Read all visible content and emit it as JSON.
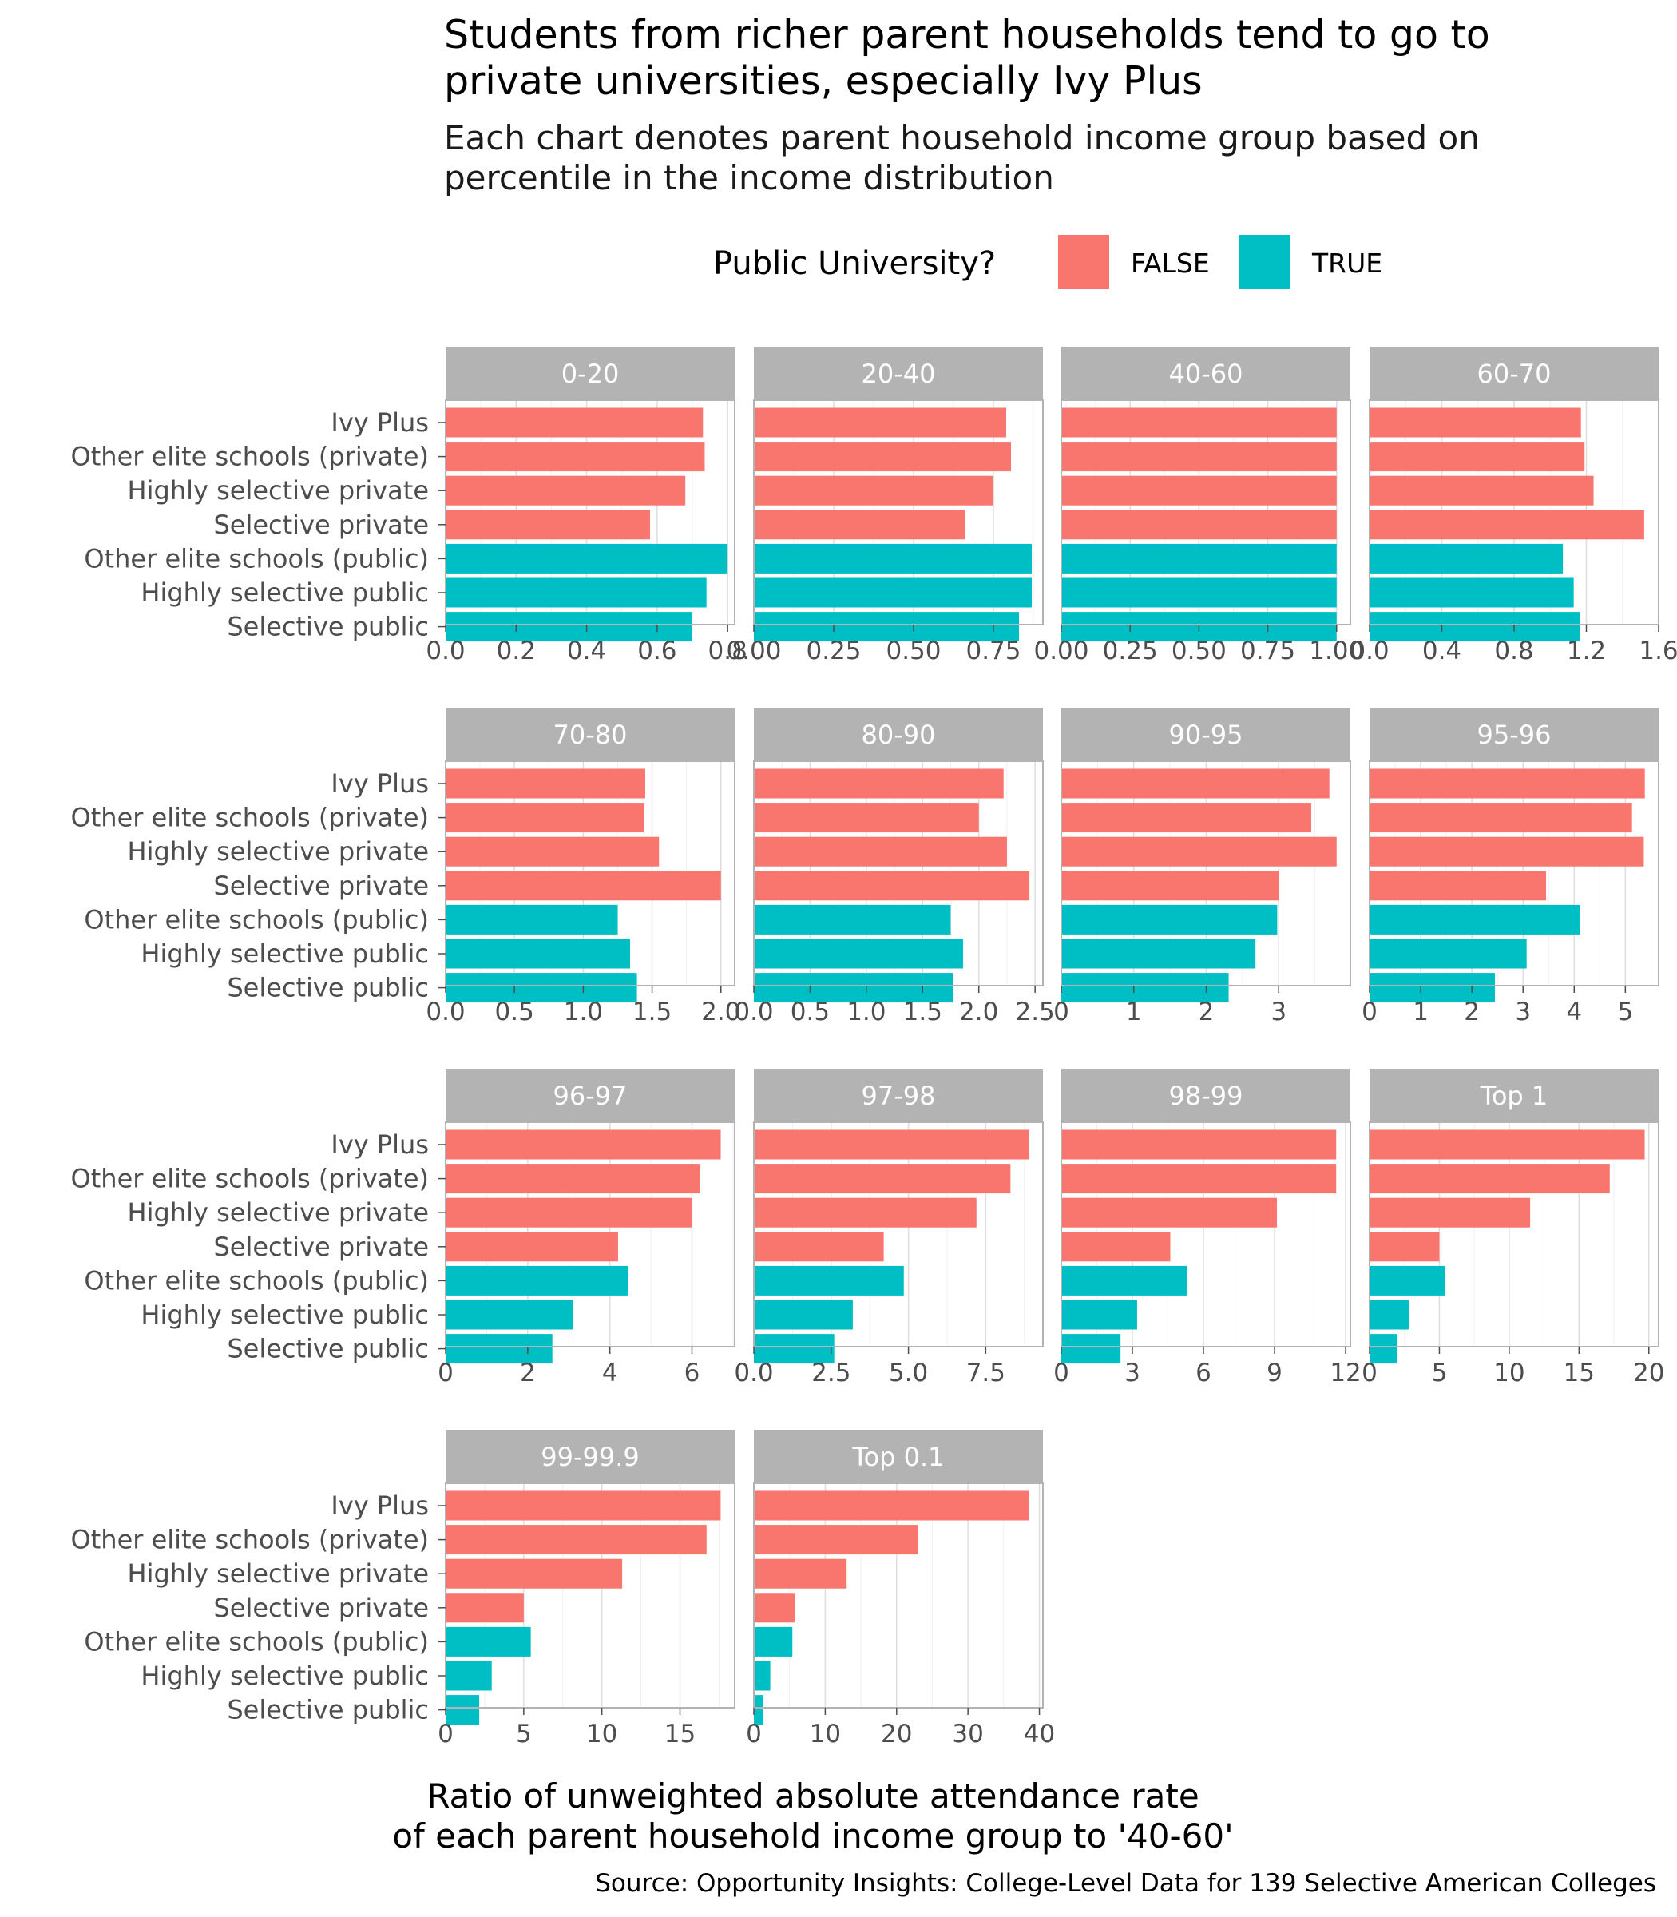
{
  "chart_data": {
    "type": "bar",
    "orientation": "horizontal",
    "title": "Students from richer parent households tend to go to private universities, especially Ivy Plus",
    "title_lines": [
      "Students from richer parent households tend to go to",
      "private universities, especially Ivy Plus"
    ],
    "subtitle": "Each chart denotes parent household income group based on percentile in the income distribution",
    "subtitle_lines": [
      "Each chart denotes parent household income group based on",
      "percentile in the income distribution"
    ],
    "xlabel": "Ratio of unweighted absolute attendance rate of each parent household income group to '40-60'",
    "xlabel_lines": [
      "Ratio of unweighted absolute attendance rate",
      "of each parent household income group to '40-60'"
    ],
    "caption": "Source: Opportunity Insights: College-Level Data for 139 Selective American Colleges",
    "legend": {
      "title": "Public University?",
      "position": "top",
      "entries": [
        {
          "label": "FALSE",
          "color": "#F8766D"
        },
        {
          "label": "TRUE",
          "color": "#00BFC4"
        }
      ]
    },
    "grid": true,
    "categories": [
      "Ivy Plus",
      "Other elite schools (private)",
      "Highly selective private",
      "Selective private",
      "Other elite schools (public)",
      "Highly selective public",
      "Selective public"
    ],
    "category_public": [
      false,
      false,
      false,
      false,
      true,
      true,
      true
    ],
    "panels": [
      {
        "name": "0-20",
        "values": [
          0.73,
          0.735,
          0.68,
          0.58,
          0.8,
          0.74,
          0.7
        ],
        "xlim": [
          0,
          0.82
        ],
        "ticks": [
          0,
          0.2,
          0.4,
          0.6,
          0.8
        ],
        "tick_labels": [
          "0.0",
          "0.2",
          "0.4",
          "0.6",
          "0.8"
        ]
      },
      {
        "name": "20-40",
        "values": [
          0.79,
          0.805,
          0.75,
          0.66,
          0.87,
          0.87,
          0.83
        ],
        "xlim": [
          0,
          0.905
        ],
        "ticks": [
          0,
          0.25,
          0.5,
          0.75
        ],
        "tick_labels": [
          "0.00",
          "0.25",
          "0.50",
          "0.75"
        ]
      },
      {
        "name": "40-60",
        "values": [
          1,
          1,
          1,
          1,
          1,
          1,
          1
        ],
        "xlim": [
          0,
          1.05
        ],
        "ticks": [
          0,
          0.25,
          0.5,
          0.75,
          1
        ],
        "tick_labels": [
          "0.00",
          "0.25",
          "0.50",
          "0.75",
          "1.00"
        ]
      },
      {
        "name": "60-70",
        "values": [
          1.17,
          1.19,
          1.24,
          1.52,
          1.07,
          1.13,
          1.165
        ],
        "xlim": [
          0,
          1.6
        ],
        "ticks": [
          0,
          0.4,
          0.8,
          1.2,
          1.6
        ],
        "tick_labels": [
          "0.0",
          "0.4",
          "0.8",
          "1.2",
          "1.6"
        ]
      },
      {
        "name": "70-80",
        "values": [
          1.45,
          1.44,
          1.55,
          2.0,
          1.25,
          1.34,
          1.39
        ],
        "xlim": [
          0,
          2.1
        ],
        "ticks": [
          0,
          0.5,
          1,
          1.5,
          2
        ],
        "tick_labels": [
          "0.0",
          "0.5",
          "1.0",
          "1.5",
          "2.0"
        ]
      },
      {
        "name": "80-90",
        "values": [
          2.22,
          2.0,
          2.25,
          2.45,
          1.75,
          1.86,
          1.77
        ],
        "xlim": [
          0,
          2.57
        ],
        "ticks": [
          0,
          0.5,
          1,
          1.5,
          2,
          2.5
        ],
        "tick_labels": [
          "0.0",
          "0.5",
          "1.0",
          "1.5",
          "2.0",
          "2.5"
        ]
      },
      {
        "name": "90-95",
        "values": [
          3.7,
          3.45,
          3.8,
          3.0,
          2.98,
          2.68,
          2.31
        ],
        "xlim": [
          0,
          3.99
        ],
        "ticks": [
          0,
          1,
          2,
          3
        ],
        "tick_labels": [
          "0",
          "1",
          "2",
          "3"
        ]
      },
      {
        "name": "95-96",
        "values": [
          5.38,
          5.13,
          5.36,
          3.45,
          4.12,
          3.07,
          2.45
        ],
        "xlim": [
          0,
          5.65
        ],
        "ticks": [
          0,
          1,
          2,
          3,
          4,
          5
        ],
        "tick_labels": [
          "0",
          "1",
          "2",
          "3",
          "4",
          "5"
        ]
      },
      {
        "name": "96-97",
        "values": [
          6.7,
          6.2,
          6.0,
          4.2,
          4.45,
          3.1,
          2.6
        ],
        "xlim": [
          0,
          7.04
        ],
        "ticks": [
          0,
          2,
          4,
          6
        ],
        "tick_labels": [
          "0",
          "2",
          "4",
          "6"
        ]
      },
      {
        "name": "97-98",
        "values": [
          8.9,
          8.3,
          7.2,
          4.2,
          4.85,
          3.2,
          2.6
        ],
        "xlim": [
          0,
          9.35
        ],
        "ticks": [
          0,
          2.5,
          5,
          7.5
        ],
        "tick_labels": [
          "0.0",
          "2.5",
          "5.0",
          "7.5"
        ]
      },
      {
        "name": "98-99",
        "values": [
          11.6,
          11.6,
          9.1,
          4.6,
          5.3,
          3.2,
          2.5
        ],
        "xlim": [
          0,
          12.2
        ],
        "ticks": [
          0,
          3,
          6,
          9,
          12
        ],
        "tick_labels": [
          "0",
          "3",
          "6",
          "9",
          "12"
        ]
      },
      {
        "name": "Top 1",
        "values": [
          19.7,
          17.2,
          11.5,
          5.0,
          5.4,
          2.8,
          2.0
        ],
        "xlim": [
          0,
          20.7
        ],
        "ticks": [
          0,
          5,
          10,
          15,
          20
        ],
        "tick_labels": [
          "0",
          "5",
          "10",
          "15",
          "20"
        ]
      },
      {
        "name": "99-99.9",
        "values": [
          17.6,
          16.7,
          11.3,
          5.0,
          5.45,
          2.95,
          2.15
        ],
        "xlim": [
          0,
          18.5
        ],
        "ticks": [
          0,
          5,
          10,
          15
        ],
        "tick_labels": [
          "0",
          "5",
          "10",
          "15"
        ]
      },
      {
        "name": "Top 0.1",
        "values": [
          38.5,
          23.0,
          13.0,
          5.8,
          5.4,
          2.3,
          1.3
        ],
        "xlim": [
          0,
          40.5
        ],
        "ticks": [
          0,
          10,
          20,
          30,
          40
        ],
        "tick_labels": [
          "0",
          "10",
          "20",
          "30",
          "40"
        ]
      }
    ]
  }
}
